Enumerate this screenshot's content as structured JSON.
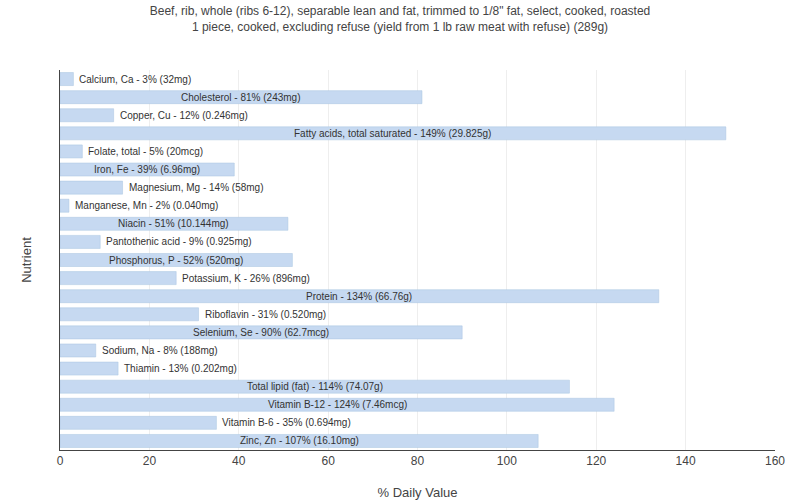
{
  "chart_data": {
    "type": "bar",
    "orientation": "horizontal",
    "title": "Beef, rib, whole (ribs 6-12), separable lean and fat, trimmed to 1/8\" fat, select, cooked, roasted\n1 piece, cooked, excluding refuse (yield from 1 lb raw meat with refuse) (289g)",
    "xlabel": "% Daily Value",
    "ylabel": "Nutrient",
    "categories": [
      "Calcium, Ca - 3% (32mg)",
      "Cholesterol - 81% (243mg)",
      "Copper, Cu - 12% (0.246mg)",
      "Fatty acids, total saturated - 149% (29.825g)",
      "Folate, total - 5% (20mcg)",
      "Iron, Fe - 39% (6.96mg)",
      "Magnesium, Mg - 14% (58mg)",
      "Manganese, Mn - 2% (0.040mg)",
      "Niacin - 51% (10.144mg)",
      "Pantothenic acid - 9% (0.925mg)",
      "Phosphorus, P - 52% (520mg)",
      "Potassium, K - 26% (896mg)",
      "Protein - 134% (66.76g)",
      "Riboflavin - 31% (0.520mg)",
      "Selenium, Se - 90% (62.7mcg)",
      "Sodium, Na - 8% (188mg)",
      "Thiamin - 13% (0.202mg)",
      "Total lipid (fat) - 114% (74.07g)",
      "Vitamin B-12 - 124% (7.46mcg)",
      "Vitamin B-6 - 35% (0.694mg)",
      "Zinc, Zn - 107% (16.10mg)"
    ],
    "values": [
      3,
      81,
      12,
      149,
      5,
      39,
      14,
      2,
      51,
      9,
      52,
      26,
      134,
      31,
      90,
      8,
      13,
      114,
      124,
      35,
      107
    ],
    "color": "#c6d9f1",
    "xlim": [
      0,
      160
    ],
    "xticks": [
      0,
      20,
      40,
      60,
      80,
      100,
      120,
      140,
      160
    ],
    "grid": true,
    "tick_labels": "x"
  }
}
